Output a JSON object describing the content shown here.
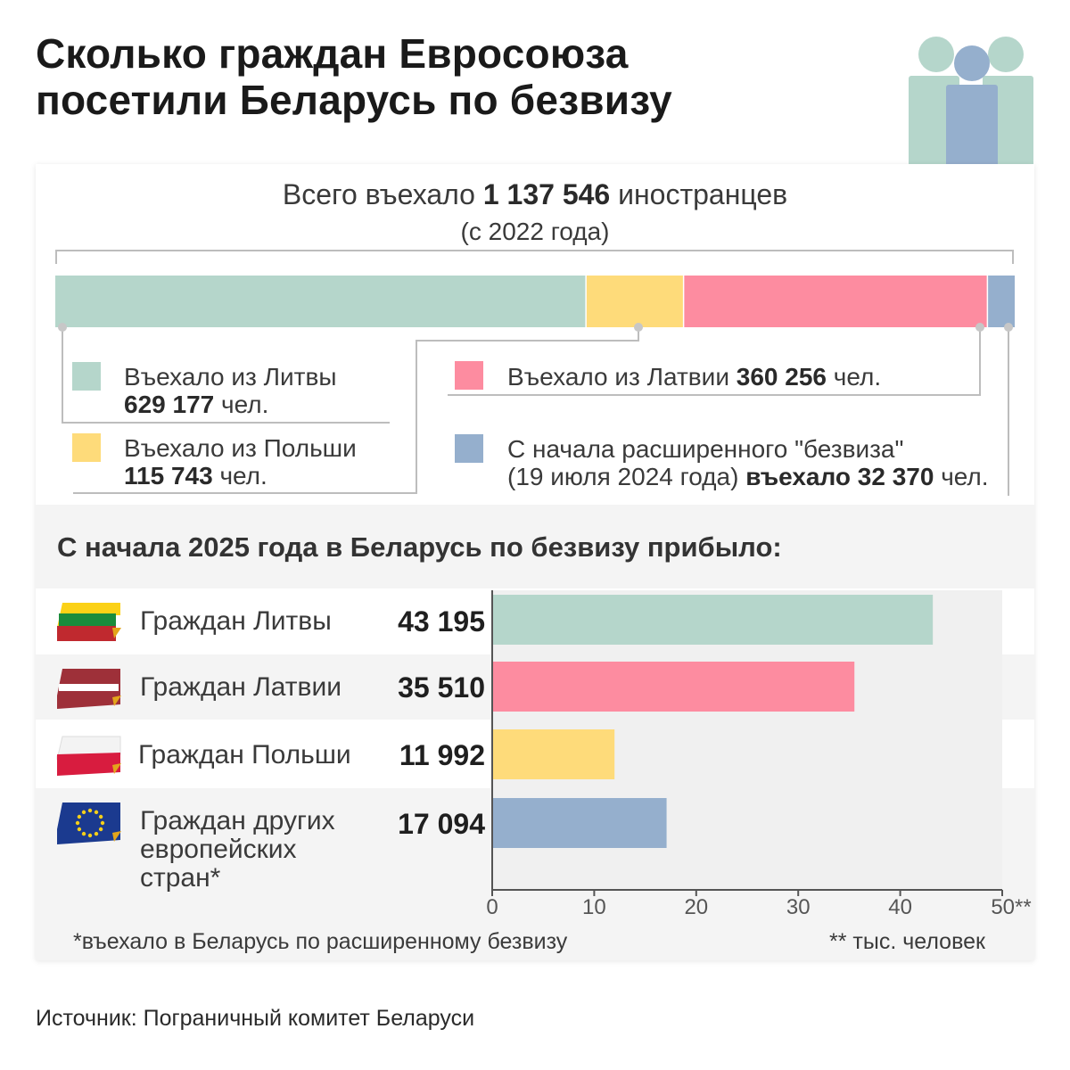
{
  "header": {
    "title_line1": "Сколько граждан Евросоюза",
    "title_line2": "посетили Беларусь по безвизу"
  },
  "total": {
    "prefix": "Всего въехало",
    "value": "1 137 546",
    "suffix": "иностранцев",
    "since": "(с 2022 года)"
  },
  "stacked": {
    "total": 1137546,
    "segments": [
      {
        "name": "Литва",
        "value": 629177,
        "color": "#b5d6cb"
      },
      {
        "name": "Польша",
        "value": 115743,
        "color": "#fedb7a"
      },
      {
        "name": "Латвия",
        "value": 360256,
        "color": "#fd8ca0"
      },
      {
        "name": "Расширенный безвиз",
        "value": 32370,
        "color": "#95afcd"
      }
    ]
  },
  "legend": {
    "lithuania": {
      "label": "Въехало из Литвы",
      "value": "629 177",
      "unit": "чел."
    },
    "poland": {
      "label": "Въехало из Польши",
      "value": "115 743",
      "unit": "чел."
    },
    "latvia": {
      "label": "Въехало из Латвии",
      "value": "360 256",
      "unit": "чел."
    },
    "extended": {
      "line1": "С начала расширенного \"безвиза\"",
      "line2_pre": "(19 июля 2024 года)",
      "line2_mid": "въехало",
      "value": "32 370",
      "unit": "чел."
    }
  },
  "section2": {
    "title": "С начала 2025 года в Беларусь по безвизу прибыло:"
  },
  "rows": [
    {
      "country_lines": [
        "Граждан Литвы"
      ],
      "count": "43 195"
    },
    {
      "country_lines": [
        "Граждан Латвии"
      ],
      "count": "35 510"
    },
    {
      "country_lines": [
        "Граждан Польши"
      ],
      "count": "11 992"
    },
    {
      "country_lines": [
        "Граждан других",
        "европейских",
        "стран*"
      ],
      "count": "17 094"
    }
  ],
  "chart_data": {
    "type": "bar",
    "orientation": "horizontal",
    "title": "С начала 2025 года в Беларусь по безвизу прибыло:",
    "categories": [
      "Граждан Литвы",
      "Граждан Латвии",
      "Граждан Польши",
      "Граждан других европейских стран*"
    ],
    "values": [
      43.195,
      35.51,
      11.992,
      17.094
    ],
    "colors": [
      "#b5d6cb",
      "#fd8ca0",
      "#fedb7a",
      "#95afcd"
    ],
    "xlim": [
      0,
      50
    ],
    "xticks": [
      "0",
      "10",
      "20",
      "30",
      "40",
      "50**"
    ],
    "xlabel": "** тыс. человек",
    "grid": false
  },
  "footnotes": {
    "left": "*въехало в Беларусь по расширенному безвизу",
    "right": "** тыс. человек"
  },
  "source": "Источник: Пограничный комитет Беларуси"
}
